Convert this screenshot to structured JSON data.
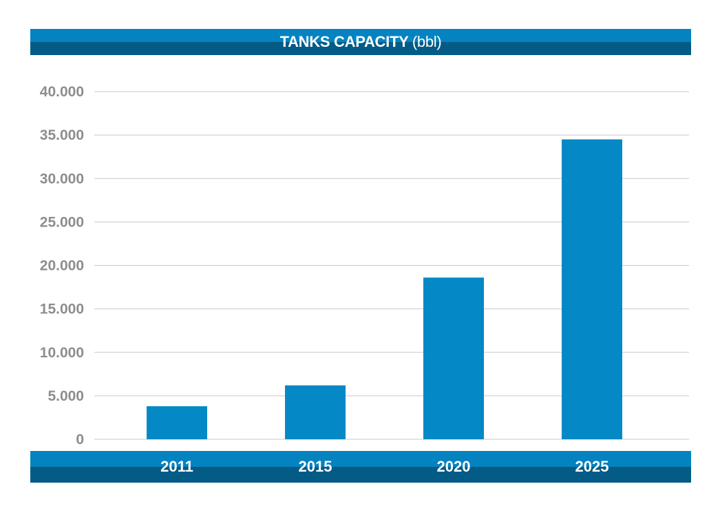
{
  "colors": {
    "bar": "#0589c6",
    "band_light": "#0583c1",
    "band_dark": "#035b86",
    "grid": "#c8c8c8",
    "tick_text": "#8d8d8d"
  },
  "chart_data": {
    "type": "bar",
    "title": "TANKS CAPACITY",
    "title_unit": "(bbl)",
    "categories": [
      "2011",
      "2015",
      "2020",
      "2025"
    ],
    "values": [
      3800,
      6200,
      18600,
      34500
    ],
    "ylim": [
      0,
      40000
    ],
    "yticks": [
      0,
      5000,
      10000,
      15000,
      20000,
      25000,
      30000,
      35000,
      40000
    ],
    "ytick_labels": [
      "0",
      "5.000",
      "10.000",
      "15.000",
      "20.000",
      "25.000",
      "30.000",
      "35.000",
      "40.000"
    ],
    "xlabel": "",
    "ylabel": "",
    "grid": true
  }
}
